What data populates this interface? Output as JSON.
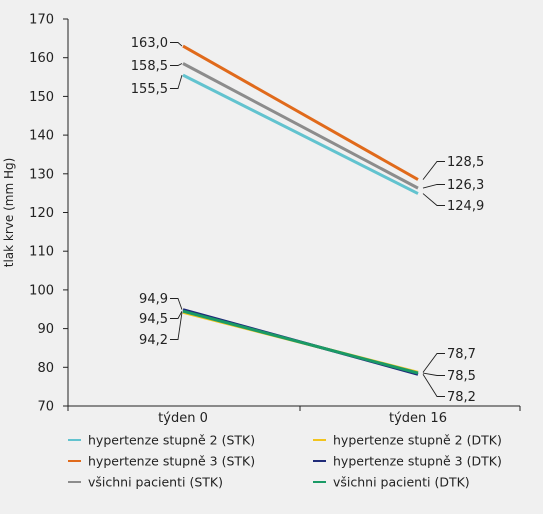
{
  "chart_data": {
    "type": "line",
    "ylabel": "tlak krve (mm Hg)",
    "xlabel": "",
    "categories": [
      "týden 0",
      "týden 16"
    ],
    "ylim": [
      70,
      170
    ],
    "yticks": [
      70,
      80,
      90,
      100,
      110,
      120,
      130,
      140,
      150,
      160,
      170
    ],
    "grid": false,
    "legend_position": "bottom",
    "series": [
      {
        "name": "hypertenze stupně 2 (STK)",
        "values": [
          155.5,
          124.9
        ],
        "labels": [
          "155,5",
          "124,9"
        ],
        "color": "#62c3cf"
      },
      {
        "name": "hypertenze stupně 3 (STK)",
        "values": [
          163.0,
          128.5
        ],
        "labels": [
          "163,0",
          "128,5"
        ],
        "color": "#e06a1b"
      },
      {
        "name": "všichni pacienti (STK)",
        "values": [
          158.5,
          126.3
        ],
        "labels": [
          "158,5",
          "126,3"
        ],
        "color": "#8c8c8c"
      },
      {
        "name": "hypertenze stupně 2 (DTK)",
        "values": [
          94.2,
          78.7
        ],
        "labels": [
          "94,2",
          "78,7"
        ],
        "color": "#f2c41d"
      },
      {
        "name": "hypertenze stupně 3 (DTK)",
        "values": [
          94.9,
          78.2
        ],
        "labels": [
          "94,9",
          "78,2"
        ],
        "color": "#1f2b78"
      },
      {
        "name": "všichni pacienti (DTK)",
        "values": [
          94.5,
          78.5
        ],
        "labels": [
          "94,5",
          "78,5"
        ],
        "color": "#1a9a66"
      }
    ]
  }
}
